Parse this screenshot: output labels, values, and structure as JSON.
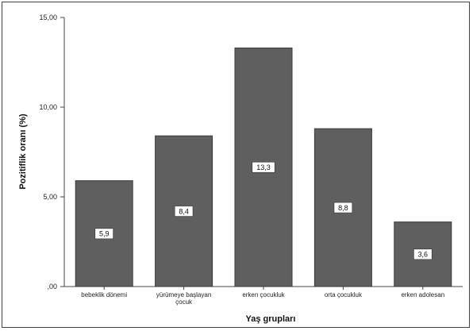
{
  "chart_data": {
    "type": "bar",
    "title": "",
    "xlabel": "Yaş grupları",
    "ylabel": "Pozitiflik oranı (%)",
    "categories": [
      [
        "bebeklik dönemi"
      ],
      [
        "yürümeye başlayan",
        "çocuk"
      ],
      [
        "erken çocukluk"
      ],
      [
        "orta çocukluk"
      ],
      [
        "erken adolesan"
      ]
    ],
    "values": [
      5.9,
      8.4,
      13.3,
      8.8,
      3.6
    ],
    "data_labels": [
      "5,9",
      "8,4",
      "13,3",
      "8,8",
      "3,6"
    ],
    "ylim": [
      0,
      15
    ],
    "yticks": [
      0,
      5,
      10,
      15
    ],
    "ytick_labels": [
      ",00",
      "5,00",
      "10,00",
      "15,00"
    ],
    "grid": false,
    "colors": {
      "bar_fill": "#5f5f5f",
      "bar_stroke": "#3a3a3a",
      "axis": "#444444",
      "label_box": "#ffffff"
    }
  }
}
